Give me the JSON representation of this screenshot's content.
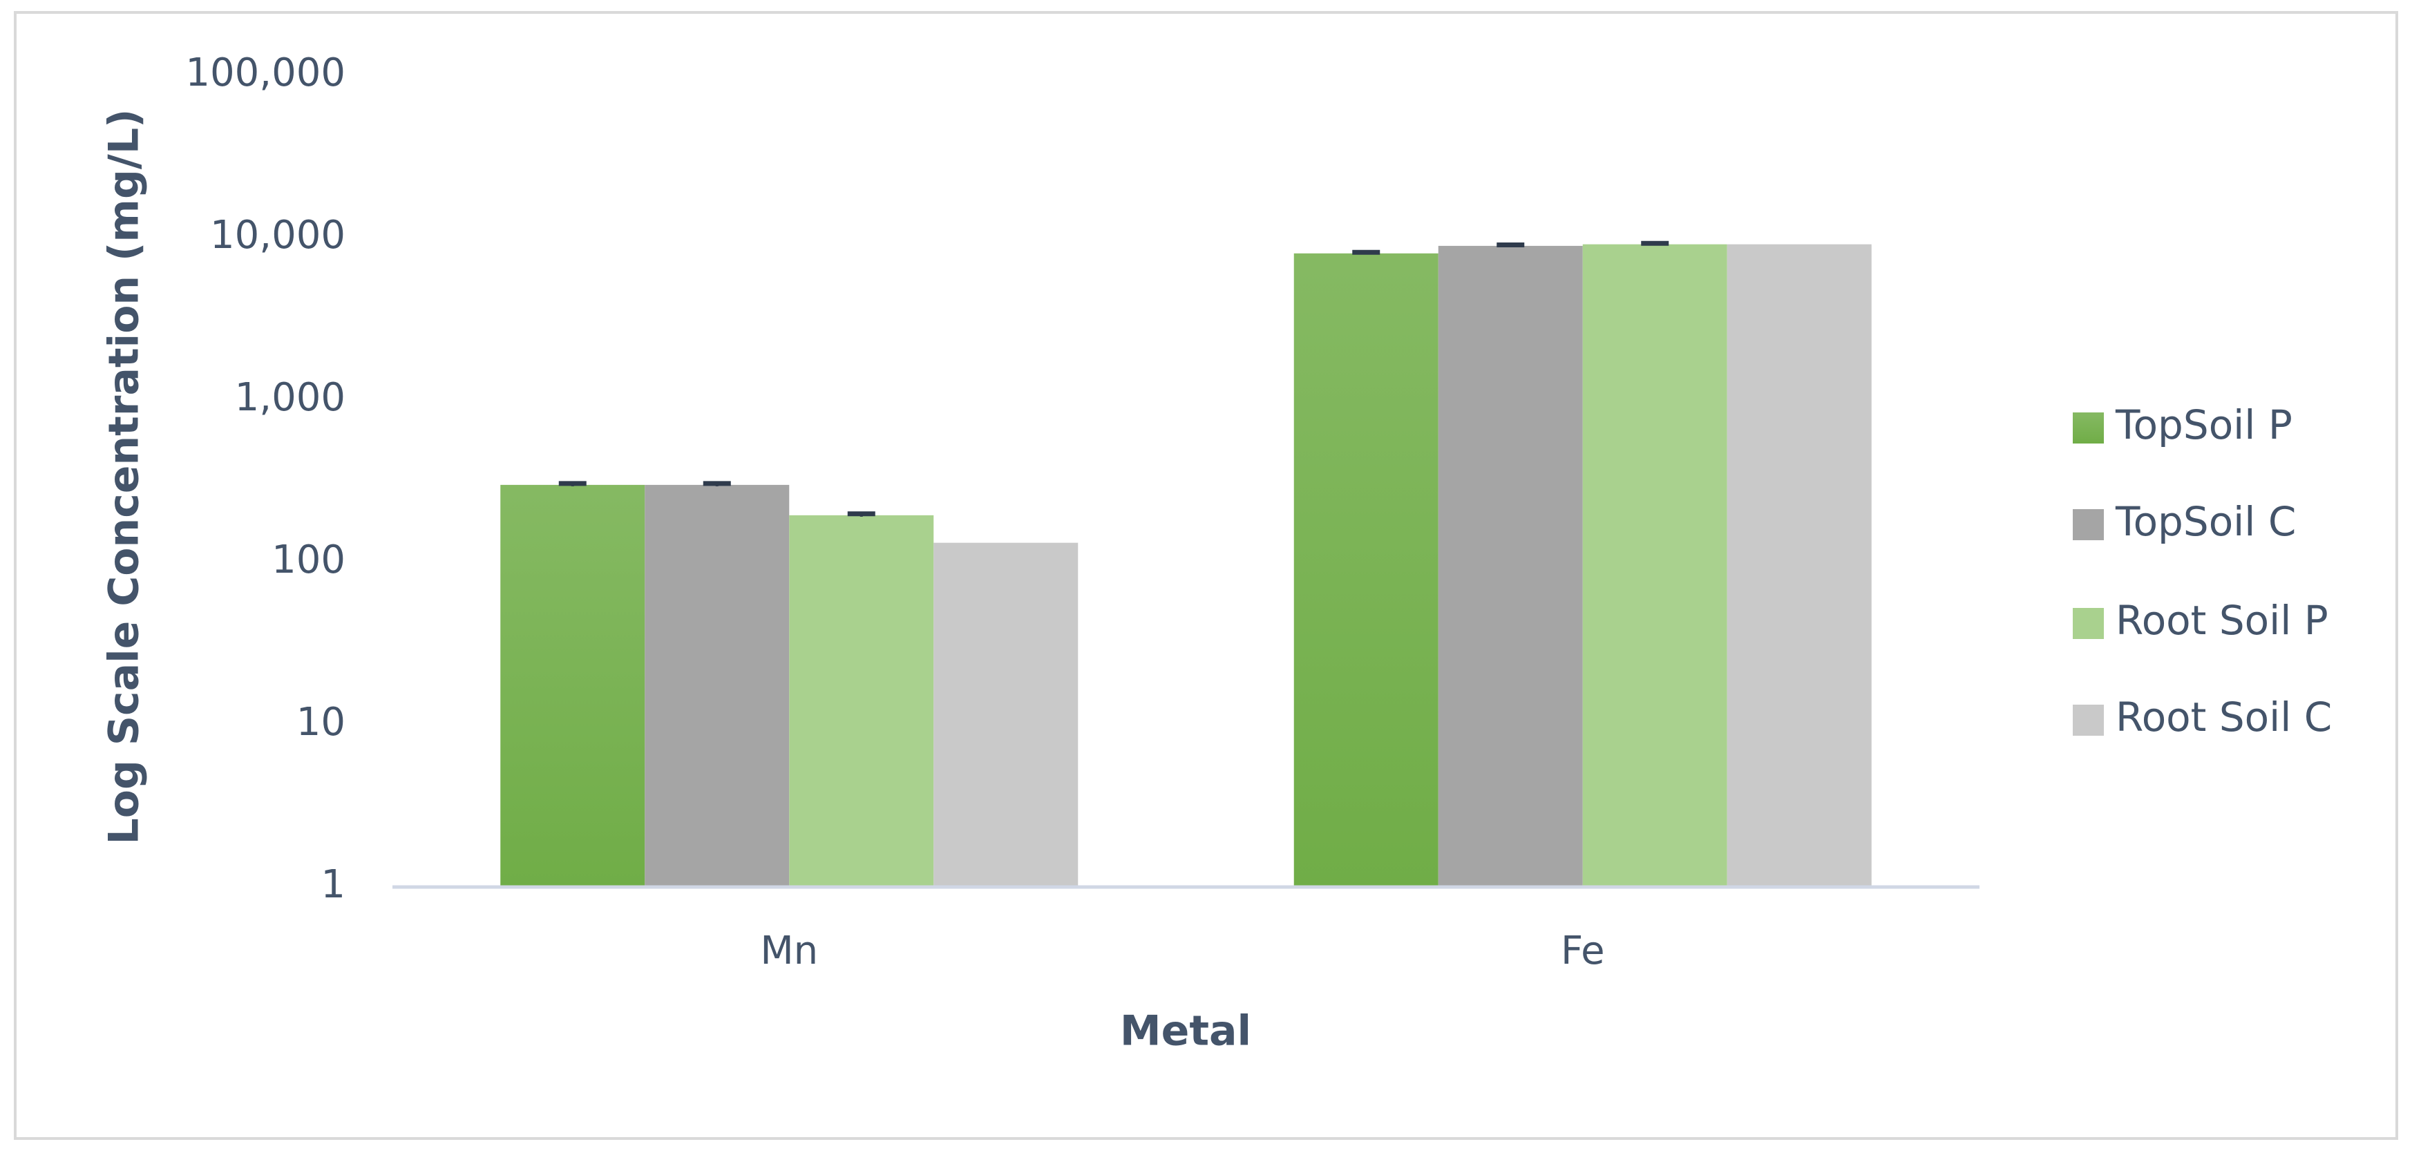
{
  "chart_data": {
    "type": "bar",
    "y_label": "Log Scale Concentration (mg/L)",
    "x_label": "Metal",
    "categories": [
      "Mn",
      "Fe"
    ],
    "series": [
      {
        "name": "TopSoil P",
        "color": "#70ad47",
        "values": [
          300,
          8000
        ],
        "errors": [
          6,
          120
        ]
      },
      {
        "name": "TopSoil C",
        "color": "#a5a5a5",
        "values": [
          300,
          8900
        ],
        "errors": [
          6,
          120
        ]
      },
      {
        "name": "Root Soil P",
        "color": "#a9d18e",
        "values": [
          195,
          9100
        ],
        "errors": [
          4,
          120
        ]
      },
      {
        "name": "Root Soil C",
        "color": "#c9c9c9",
        "values": [
          132,
          9100
        ]
      }
    ],
    "log_scale": true,
    "ylim": [
      1,
      100000
    ],
    "yticks": [
      1,
      10,
      100,
      {
        "value": 1000,
        "label": "1,000"
      },
      {
        "value": 10000,
        "label": "10,000"
      },
      {
        "value": 100000,
        "label": "100,000"
      }
    ],
    "legend": "right"
  }
}
